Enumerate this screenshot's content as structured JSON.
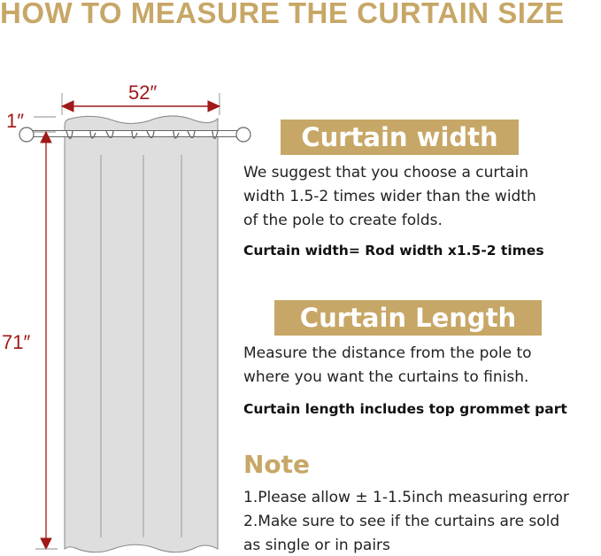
{
  "title": "HOW TO MEASURE THE CURTAIN SIZE",
  "diagram": {
    "width_label": "52″",
    "header_label": "1″",
    "length_label": "71″",
    "accent_color": "#a01818"
  },
  "width_section": {
    "heading": "Curtain width",
    "lines": [
      "We suggest that you choose a curtain",
      "width 1.5-2 times wider than the width",
      "of the pole to create folds."
    ],
    "formula": "Curtain width= Rod width x1.5-2 times"
  },
  "length_section": {
    "heading": "Curtain Length",
    "lines": [
      "Measure the distance from the pole to",
      "where you want the curtains to finish."
    ],
    "formula": "Curtain length includes top grommet part"
  },
  "note": {
    "heading": "Note",
    "lines": [
      "1.Please allow ± 1-1.5inch measuring error",
      "2.Make sure to see if the curtains are sold",
      "as single or in pairs"
    ]
  },
  "brand_color": "#c7a767"
}
